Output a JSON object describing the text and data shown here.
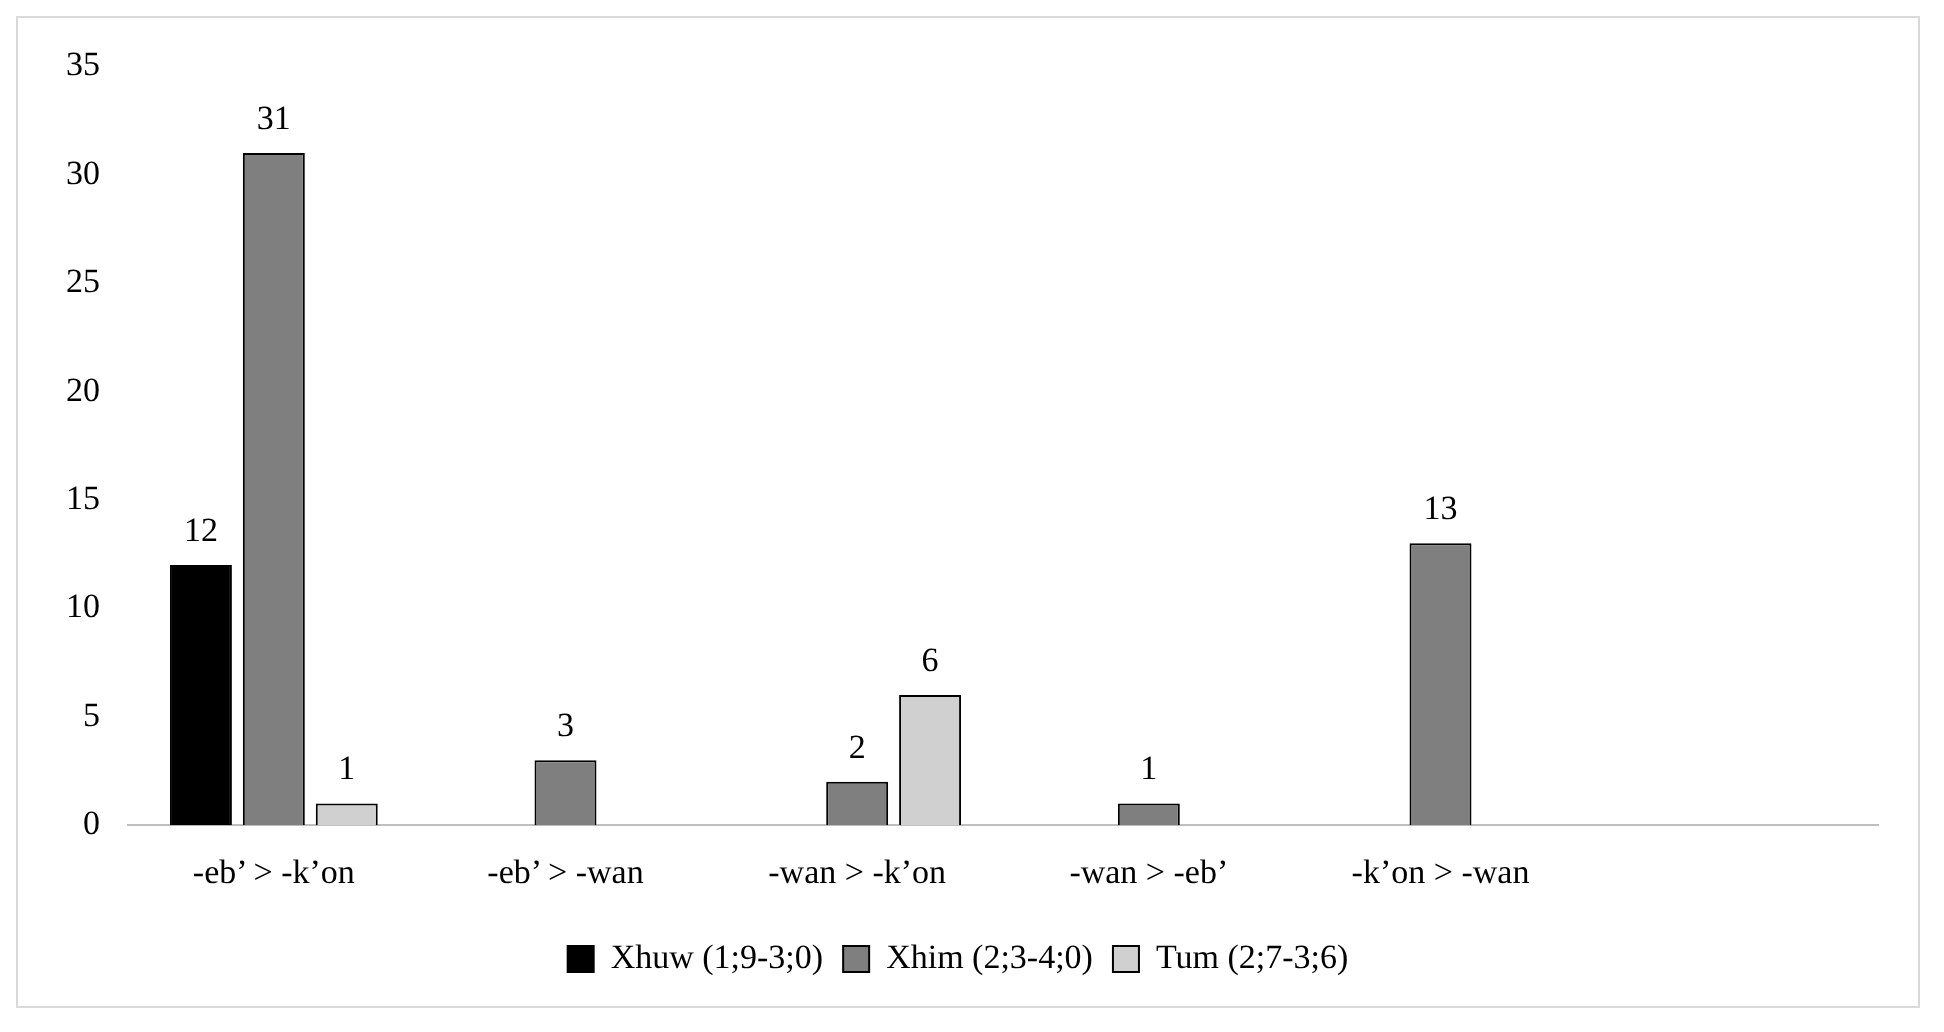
{
  "chart_data": {
    "type": "bar",
    "categories": [
      "-eb’ > -k’on",
      "-eb’ > -wan",
      "-wan > -k’on",
      "-wan > -eb’",
      "-k’on > -wan",
      null
    ],
    "series": [
      {
        "name": "Xhuw (1;9-3;0)",
        "color": "#000000",
        "values": [
          12,
          null,
          null,
          null,
          null,
          null
        ]
      },
      {
        "name": "Xhim (2;3-4;0)",
        "color": "#7f7f7f",
        "values": [
          31,
          3,
          2,
          1,
          13,
          null
        ]
      },
      {
        "name": "Tum (2;7-3;6)",
        "color": "#d0d0d0",
        "values": [
          1,
          null,
          6,
          null,
          null,
          null
        ]
      }
    ],
    "ylim": [
      0,
      35
    ],
    "yticks": [
      0,
      5,
      10,
      15,
      20,
      25,
      30,
      35
    ],
    "grid": false,
    "legend": "bottom",
    "data_labels": true
  }
}
